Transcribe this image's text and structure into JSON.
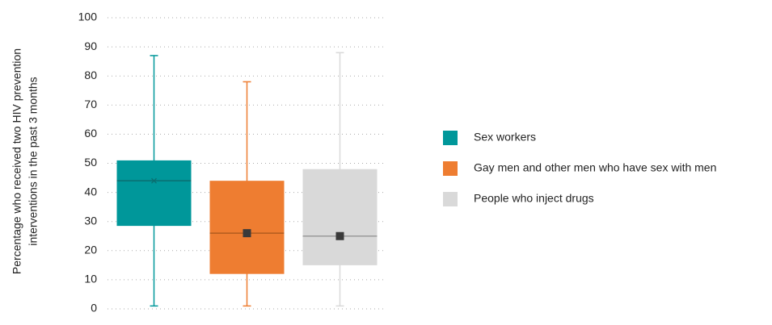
{
  "chart_data": {
    "type": "box",
    "ylabel": [
      "Percentage  who received two HIV prevention",
      "interventions in the past 3 months"
    ],
    "ylim": [
      0,
      100
    ],
    "yticks": [
      0,
      10,
      20,
      30,
      40,
      50,
      60,
      70,
      80,
      90,
      100
    ],
    "grid": true,
    "legend": "right",
    "series": [
      {
        "name": "Sex workers",
        "color": "#00979a",
        "line_color": "#0b6e70",
        "mean_marker": "x",
        "min": 1,
        "q1": 28.5,
        "median": 44,
        "q3": 51,
        "max": 87,
        "mean": 44
      },
      {
        "name": "Gay men and other men who have sex with men",
        "color": "#ee7d31",
        "line_color": "#b35c1f",
        "mean_marker": "square",
        "min": 1,
        "q1": 12,
        "median": 26,
        "q3": 44,
        "max": 78,
        "mean": 26
      },
      {
        "name": "People who inject drugs",
        "color": "#d9d9d9",
        "line_color": "#9a9a9a",
        "mean_marker": "square",
        "min": 1,
        "q1": 15,
        "median": 25,
        "q3": 48,
        "max": 88,
        "mean": 25
      }
    ]
  }
}
